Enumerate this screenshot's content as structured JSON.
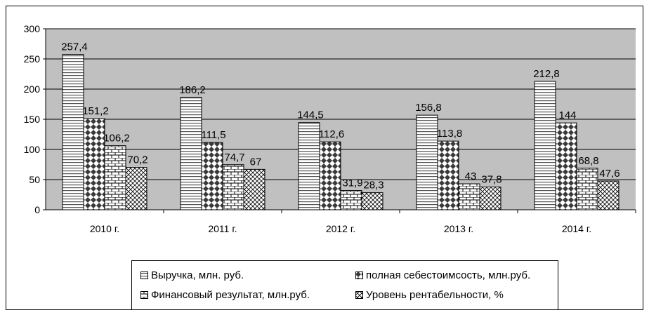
{
  "chart_data": {
    "type": "bar",
    "categories": [
      "2010 г.",
      "2011 г.",
      "2012 г.",
      "2013 г.",
      "2014 г."
    ],
    "series": [
      {
        "name": "Выручка, млн. руб.",
        "values": [
          257.4,
          186.2,
          144.5,
          156.8,
          212.8
        ],
        "labels": [
          "257,4",
          "186,2",
          "144,5",
          "156,8",
          "212,8"
        ],
        "pattern": "hstripe"
      },
      {
        "name": "полная себестоимсость, млн.руб.",
        "values": [
          151.2,
          111.5,
          112.6,
          113.8,
          144
        ],
        "labels": [
          "151,2",
          "111,5",
          "112,6",
          "113,8",
          "144"
        ],
        "pattern": "diamond"
      },
      {
        "name": "Финансовый результат, млн.руб.",
        "values": [
          106.2,
          74.7,
          31.9,
          43,
          68.8
        ],
        "labels": [
          "106,2",
          "74,7",
          "31,9",
          "43",
          "68,8"
        ],
        "pattern": "brick"
      },
      {
        "name": "Уровень рентабельности, %",
        "values": [
          70.2,
          67,
          28.3,
          37.8,
          47.6
        ],
        "labels": [
          "70,2",
          "67",
          "28,3",
          "37,8",
          "47,6"
        ],
        "pattern": "crosshatch"
      }
    ],
    "yticks": [
      "0",
      "50",
      "100",
      "150",
      "200",
      "250",
      "300"
    ],
    "ylim": [
      0,
      300
    ],
    "grid": true,
    "legend_position": "bottom",
    "plot_background": "#c0c0c0"
  }
}
